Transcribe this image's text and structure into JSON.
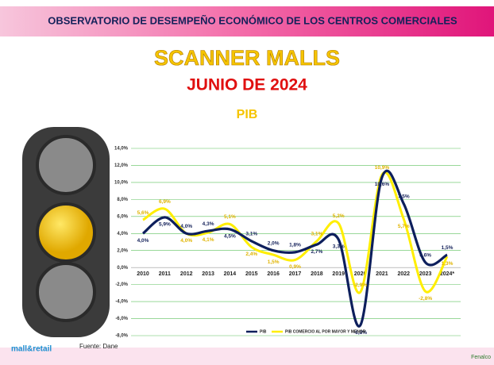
{
  "header": {
    "title": "OBSERVATORIO DE DESEMPEÑO ECONÓMICO  DE LOS CENTROS COMERCIALES",
    "heading": "SCANNER MALLS",
    "date": "JUNIO DE 2024"
  },
  "chart_data": {
    "type": "line",
    "title": "PIB",
    "categories": [
      "2010",
      "2011",
      "2012",
      "2013",
      "2014",
      "2015",
      "2016",
      "2017",
      "2018",
      "2019",
      "2020",
      "2021",
      "2022",
      "2023",
      "2024*"
    ],
    "series": [
      {
        "name": "PIB",
        "color": "#0d1f5c",
        "values": [
          4.0,
          5.9,
          4.0,
          4.3,
          4.5,
          3.1,
          2.0,
          1.8,
          2.7,
          3.3,
          -6.8,
          10.6,
          7.5,
          0.6,
          1.5
        ],
        "value_labels": [
          "4,0%",
          "5,9%",
          "4,0%",
          "4,3%",
          "4,5%",
          "3,1%",
          "2,0%",
          "1,8%",
          "2,7%",
          "3,3%",
          "-6,8%",
          "10,6%",
          "7,5%",
          "0,6%",
          "1,5%"
        ]
      },
      {
        "name": "PIB COMERCIO AL POR MAYOR Y MENOR",
        "color": "#ffee00",
        "values": [
          5.6,
          6.9,
          4.0,
          4.1,
          5.1,
          2.4,
          1.5,
          0.9,
          3.1,
          5.2,
          -2.9,
          10.9,
          5.7,
          -2.8,
          1.3
        ],
        "value_labels": [
          "5,6%",
          "6,9%",
          "4,0%",
          "4,1%",
          "5,1%",
          "2,4%",
          "1,5%",
          "0,9%",
          "3,1%",
          "5,2%",
          "-2,9%",
          "10,9%",
          "5,7%",
          "-2,8%",
          "1,3%"
        ]
      }
    ],
    "ylim": [
      -8,
      14
    ],
    "yticks": [
      {
        "value": -8,
        "label": "-8,0%"
      },
      {
        "value": -6,
        "label": "-6,0%"
      },
      {
        "value": -4,
        "label": "-4,0%"
      },
      {
        "value": -2,
        "label": "-2,0%"
      },
      {
        "value": 0,
        "label": "0,0%"
      },
      {
        "value": 2,
        "label": "2,0%"
      },
      {
        "value": 4,
        "label": "4,0%"
      },
      {
        "value": 6,
        "label": "6,0%"
      },
      {
        "value": 8,
        "label": "8,0%"
      },
      {
        "value": 10,
        "label": "10,0%"
      },
      {
        "value": 12,
        "label": "12,0%"
      },
      {
        "value": 14,
        "label": "14,0%"
      }
    ],
    "grid": true,
    "legend": "bottom"
  },
  "footer": {
    "source": "Fuente: Dane",
    "logo": "mall&retail",
    "brand": "Fenalco"
  }
}
